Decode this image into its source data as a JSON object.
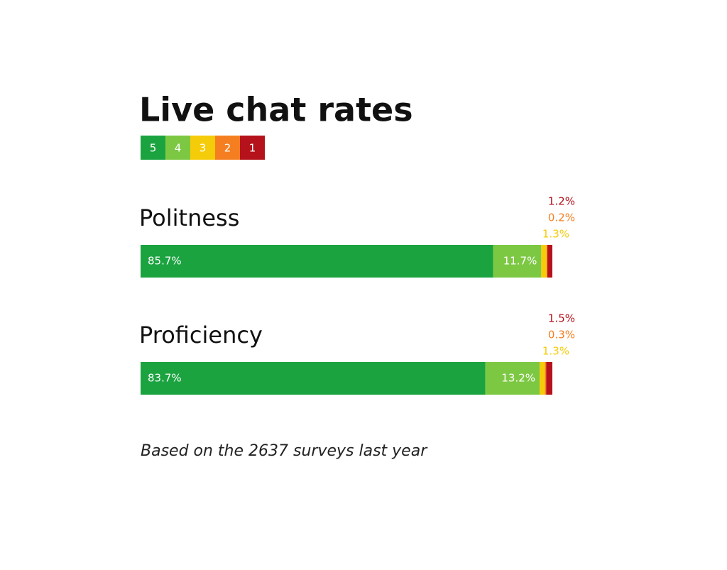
{
  "chart_data": {
    "type": "bar",
    "orientation": "horizontal",
    "stacked": true,
    "title": "Live chat rates",
    "categories": [
      "Politness",
      "Proficiency"
    ],
    "series": [
      {
        "name": "5",
        "color": "#1ba340",
        "values": [
          85.7,
          83.7
        ],
        "value_labels": [
          "85.7%",
          "83.7%"
        ]
      },
      {
        "name": "4",
        "color": "#7dc843",
        "values": [
          11.7,
          13.2
        ],
        "value_labels": [
          "11.7%",
          "13.2%"
        ]
      },
      {
        "name": "3",
        "color": "#f5cc0a",
        "values": [
          1.3,
          1.3
        ],
        "value_labels": [
          "1.3%",
          "1.3%"
        ]
      },
      {
        "name": "2",
        "color": "#f57f20",
        "values": [
          0.2,
          0.3
        ],
        "value_labels": [
          "0.2%",
          "0.3%"
        ]
      },
      {
        "name": "1",
        "color": "#b5121b",
        "values": [
          1.2,
          1.5
        ],
        "value_labels": [
          "1.2%",
          "1.5%"
        ]
      }
    ],
    "note": "Based on the 2637 surveys last year"
  }
}
